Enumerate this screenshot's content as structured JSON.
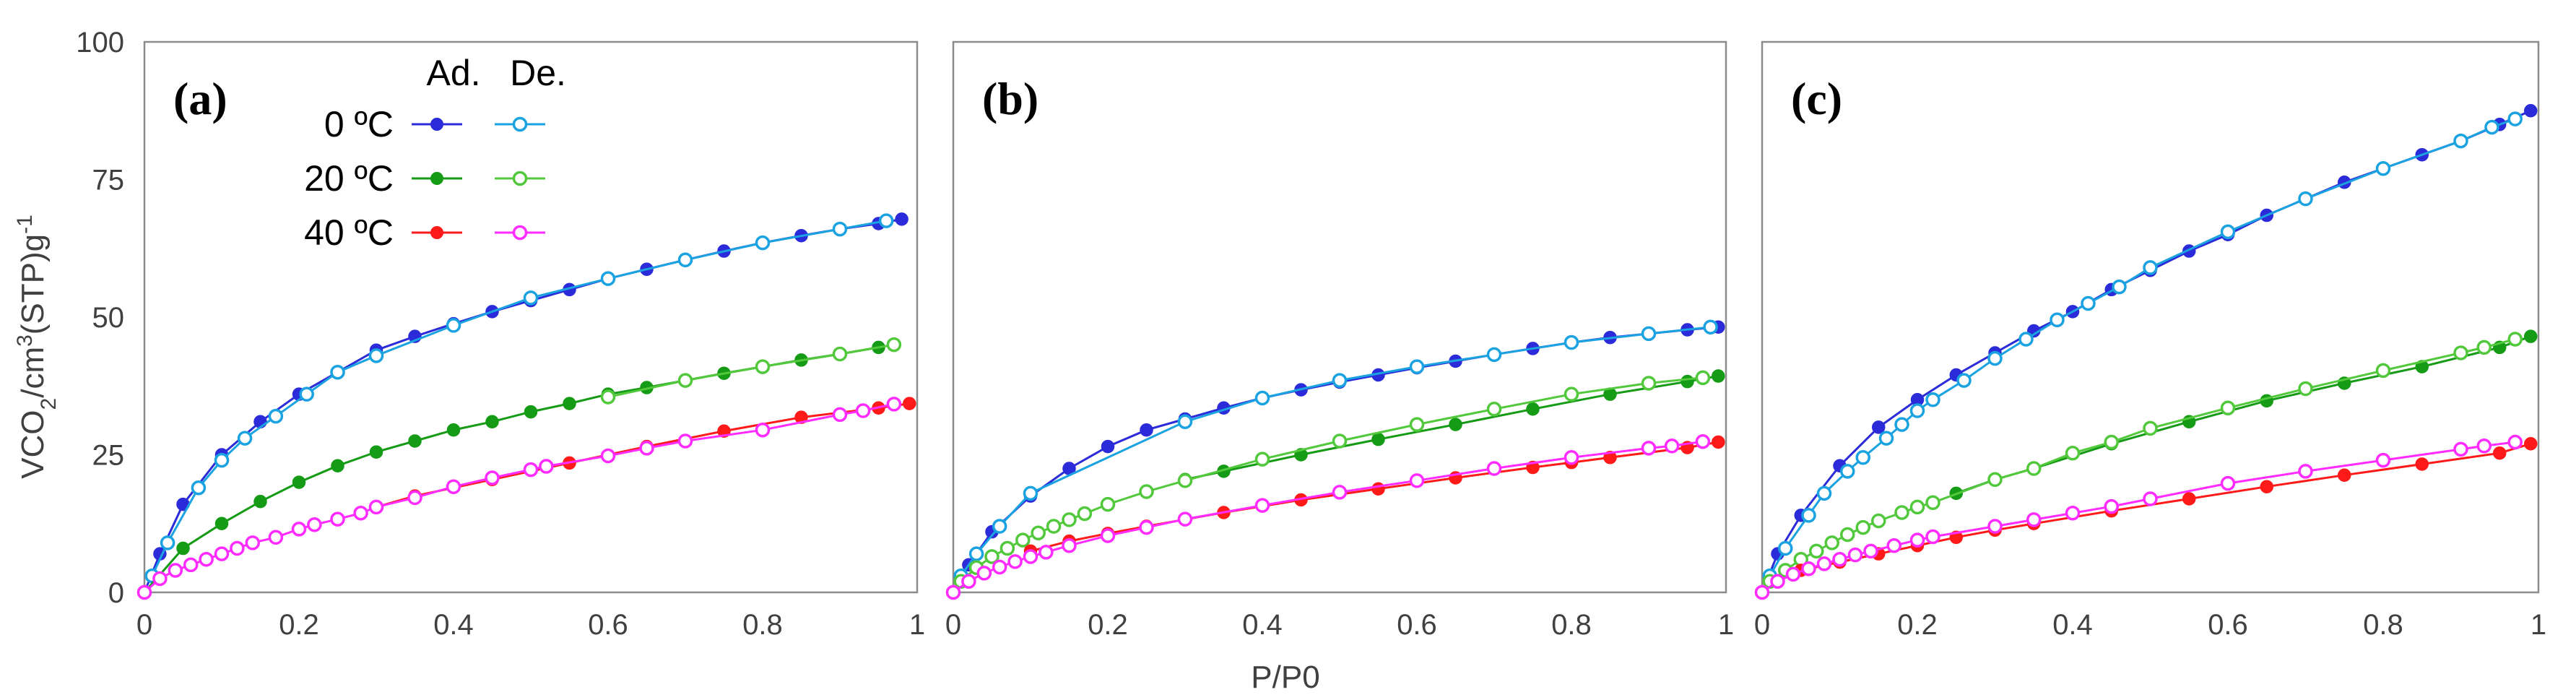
{
  "figure": {
    "x_axis_label": "P/P0",
    "y_axis_label": "VCO2/cm3(STP)g-1",
    "y_axis_label_parts": {
      "v": "VCO",
      "sub": "2",
      "mid": "/cm",
      "sup1": "3",
      "stp": "(STP)g",
      "sup2": "-1"
    }
  },
  "legend": {
    "ad_header": "Ad.",
    "de_header": "De.",
    "entries": [
      {
        "label": "0 ºC",
        "ad_color": "#2b2bd9",
        "de_color": "#1aa3e0"
      },
      {
        "label": "20 ºC",
        "ad_color": "#159b15",
        "de_color": "#52c83c"
      },
      {
        "label": "40 ºC",
        "ad_color": "#ff1a1a",
        "de_color": "#ff2bff"
      }
    ]
  },
  "chart_data": [
    {
      "type": "line",
      "panel_label": "(a)",
      "xlim": [
        0,
        1
      ],
      "ylim": [
        0,
        100
      ],
      "x_ticks": [
        "0",
        "0.2",
        "0.4",
        "0.6",
        "0.8",
        "1"
      ],
      "y_ticks": [
        "0",
        "25",
        "50",
        "75",
        "100"
      ],
      "grid": false,
      "series": [
        {
          "name": "0 ºC Ad.",
          "color": "#2b2bd9",
          "marker": "filled",
          "x": [
            0,
            0.02,
            0.05,
            0.1,
            0.15,
            0.2,
            0.25,
            0.3,
            0.35,
            0.4,
            0.45,
            0.5,
            0.55,
            0.6,
            0.65,
            0.7,
            0.75,
            0.8,
            0.85,
            0.9,
            0.95,
            0.98
          ],
          "y": [
            0,
            7,
            16,
            25,
            31,
            36,
            40,
            44,
            46.5,
            48.8,
            51,
            53,
            55,
            57,
            58.7,
            60.4,
            62,
            63.5,
            64.8,
            66,
            67,
            67.8
          ]
        },
        {
          "name": "0 ºC De.",
          "color": "#1aa3e0",
          "marker": "open",
          "x": [
            0.01,
            0.03,
            0.07,
            0.1,
            0.13,
            0.17,
            0.21,
            0.25,
            0.3,
            0.4,
            0.5,
            0.6,
            0.7,
            0.8,
            0.9,
            0.96
          ],
          "y": [
            3,
            9,
            19,
            24,
            28,
            32,
            36,
            40,
            43,
            48.5,
            53.5,
            57,
            60.4,
            63.5,
            66,
            67.5
          ]
        },
        {
          "name": "20 ºC Ad.",
          "color": "#159b15",
          "marker": "filled",
          "x": [
            0,
            0.05,
            0.1,
            0.15,
            0.2,
            0.25,
            0.3,
            0.35,
            0.4,
            0.45,
            0.5,
            0.55,
            0.6,
            0.65,
            0.7,
            0.75,
            0.8,
            0.85,
            0.9,
            0.95
          ],
          "y": [
            0,
            8,
            12.5,
            16.5,
            20,
            23,
            25.5,
            27.5,
            29.5,
            31,
            32.8,
            34.3,
            36,
            37.2,
            38.5,
            39.8,
            41,
            42.2,
            43.3,
            44.5
          ]
        },
        {
          "name": "20 ºC De.",
          "color": "#52c83c",
          "marker": "open",
          "x": [
            0.6,
            0.7,
            0.8,
            0.9,
            0.97
          ],
          "y": [
            35.5,
            38.5,
            41,
            43.3,
            45
          ]
        },
        {
          "name": "40 ºC Ad.",
          "color": "#ff1a1a",
          "marker": "filled",
          "x": [
            0.3,
            0.35,
            0.45,
            0.55,
            0.65,
            0.75,
            0.85,
            0.95,
            0.99
          ],
          "y": [
            15.5,
            17.5,
            20.5,
            23.5,
            26.5,
            29.3,
            31.8,
            33.5,
            34.3
          ]
        },
        {
          "name": "40 ºC De.",
          "color": "#ff2bff",
          "marker": "open",
          "x": [
            0,
            0.02,
            0.04,
            0.06,
            0.08,
            0.1,
            0.12,
            0.14,
            0.17,
            0.2,
            0.22,
            0.25,
            0.28,
            0.3,
            0.35,
            0.4,
            0.45,
            0.5,
            0.52,
            0.6,
            0.65,
            0.7,
            0.8,
            0.9,
            0.93,
            0.97
          ],
          "y": [
            0,
            2.5,
            4,
            5,
            6,
            7,
            8,
            9,
            10,
            11.5,
            12.3,
            13.3,
            14.4,
            15.5,
            17.2,
            19.2,
            20.8,
            22.3,
            22.9,
            24.8,
            26.2,
            27.5,
            29.5,
            32.3,
            33,
            34.2
          ]
        }
      ]
    },
    {
      "type": "line",
      "panel_label": "(b)",
      "xlim": [
        0,
        1
      ],
      "ylim": [
        0,
        100
      ],
      "x_ticks": [
        "0",
        "0.2",
        "0.4",
        "0.6",
        "0.8",
        "1"
      ],
      "y_ticks": [
        "0",
        "25",
        "50",
        "75",
        "100"
      ],
      "grid": false,
      "series": [
        {
          "name": "0 ºC Ad.",
          "color": "#2b2bd9",
          "marker": "filled",
          "x": [
            0,
            0.02,
            0.05,
            0.1,
            0.15,
            0.2,
            0.25,
            0.3,
            0.35,
            0.4,
            0.45,
            0.5,
            0.55,
            0.6,
            0.65,
            0.7,
            0.75,
            0.8,
            0.85,
            0.9,
            0.95,
            0.99
          ],
          "y": [
            0,
            5,
            11,
            17.5,
            22.5,
            26.5,
            29.5,
            31.5,
            33.5,
            35.3,
            36.8,
            38.2,
            39.5,
            40.8,
            42,
            43.2,
            44.3,
            45.4,
            46.3,
            47,
            47.7,
            48.2
          ]
        },
        {
          "name": "0 ºC De.",
          "color": "#1aa3e0",
          "marker": "open",
          "x": [
            0.01,
            0.03,
            0.06,
            0.1,
            0.3,
            0.4,
            0.5,
            0.6,
            0.7,
            0.8,
            0.9,
            0.98
          ],
          "y": [
            3,
            7,
            12,
            18,
            31,
            35.3,
            38.5,
            41,
            43.2,
            45.4,
            47,
            48.2
          ]
        },
        {
          "name": "20 ºC Ad.",
          "color": "#159b15",
          "marker": "filled",
          "x": [
            0.3,
            0.35,
            0.45,
            0.55,
            0.65,
            0.75,
            0.85,
            0.95,
            0.99
          ],
          "y": [
            20.5,
            22,
            25,
            27.8,
            30.5,
            33.3,
            36,
            38.3,
            39.3
          ]
        },
        {
          "name": "20 ºC De.",
          "color": "#52c83c",
          "marker": "open",
          "x": [
            0.01,
            0.03,
            0.05,
            0.07,
            0.09,
            0.11,
            0.13,
            0.15,
            0.17,
            0.2,
            0.25,
            0.3,
            0.4,
            0.5,
            0.6,
            0.7,
            0.8,
            0.9,
            0.97
          ],
          "y": [
            2,
            4.5,
            6.5,
            8,
            9.5,
            10.8,
            12,
            13.2,
            14.3,
            16,
            18.3,
            20.3,
            24.2,
            27.5,
            30.5,
            33.3,
            36,
            38,
            39
          ]
        },
        {
          "name": "40 ºC Ad.",
          "color": "#ff1a1a",
          "marker": "filled",
          "x": [
            0.1,
            0.15,
            0.2,
            0.25,
            0.35,
            0.45,
            0.55,
            0.65,
            0.75,
            0.8,
            0.85,
            0.95,
            0.99
          ],
          "y": [
            7.5,
            9.3,
            10.7,
            12,
            14.5,
            16.8,
            18.8,
            20.8,
            22.7,
            23.6,
            24.5,
            26.3,
            27.3
          ]
        },
        {
          "name": "40 ºC De.",
          "color": "#ff2bff",
          "marker": "open",
          "x": [
            0,
            0.02,
            0.04,
            0.06,
            0.08,
            0.1,
            0.12,
            0.15,
            0.2,
            0.25,
            0.3,
            0.4,
            0.5,
            0.6,
            0.7,
            0.8,
            0.9,
            0.93,
            0.97
          ],
          "y": [
            0,
            2,
            3.5,
            4.6,
            5.6,
            6.5,
            7.3,
            8.5,
            10.3,
            11.8,
            13.3,
            15.8,
            18.2,
            20.3,
            22.5,
            24.5,
            26.2,
            26.6,
            27.4
          ]
        }
      ]
    },
    {
      "type": "line",
      "panel_label": "(c)",
      "xlim": [
        0,
        1
      ],
      "ylim": [
        0,
        100
      ],
      "x_ticks": [
        "0",
        "0.2",
        "0.4",
        "0.6",
        "0.8",
        "1"
      ],
      "y_ticks": [
        "0",
        "25",
        "50",
        "75",
        "100"
      ],
      "grid": false,
      "series": [
        {
          "name": "0 ºC Ad.",
          "color": "#2b2bd9",
          "marker": "filled",
          "x": [
            0,
            0.02,
            0.05,
            0.1,
            0.15,
            0.2,
            0.25,
            0.3,
            0.35,
            0.4,
            0.45,
            0.5,
            0.55,
            0.6,
            0.65,
            0.7,
            0.75,
            0.8,
            0.85,
            0.9,
            0.95,
            0.99
          ],
          "y": [
            0,
            7,
            14,
            23,
            30,
            35,
            39.5,
            43.5,
            47.5,
            51,
            55,
            58.5,
            62,
            65,
            68.5,
            71.5,
            74.5,
            77,
            79.5,
            82,
            85,
            87.5
          ]
        },
        {
          "name": "0 ºC De.",
          "color": "#1aa3e0",
          "marker": "open",
          "x": [
            0.01,
            0.03,
            0.06,
            0.08,
            0.11,
            0.13,
            0.16,
            0.18,
            0.2,
            0.22,
            0.26,
            0.3,
            0.34,
            0.38,
            0.42,
            0.46,
            0.5,
            0.6,
            0.7,
            0.8,
            0.9,
            0.94,
            0.97
          ],
          "y": [
            3,
            8,
            14,
            18,
            22,
            24.5,
            28,
            30.5,
            33,
            35,
            38.5,
            42.5,
            46,
            49.5,
            52.5,
            55.5,
            59,
            65.5,
            71.5,
            77,
            82,
            84.5,
            86
          ]
        },
        {
          "name": "20 ºC Ad.",
          "color": "#159b15",
          "marker": "filled",
          "x": [
            0.25,
            0.3,
            0.35,
            0.45,
            0.55,
            0.65,
            0.75,
            0.85,
            0.95,
            0.99
          ],
          "y": [
            18,
            20.5,
            22.5,
            27,
            31,
            34.8,
            38,
            41,
            44.5,
            46.5
          ]
        },
        {
          "name": "20 ºC De.",
          "color": "#52c83c",
          "marker": "open",
          "x": [
            0.01,
            0.03,
            0.05,
            0.07,
            0.09,
            0.11,
            0.13,
            0.15,
            0.18,
            0.2,
            0.22,
            0.3,
            0.35,
            0.4,
            0.45,
            0.5,
            0.6,
            0.7,
            0.8,
            0.9,
            0.93,
            0.97
          ],
          "y": [
            2,
            4,
            6,
            7.5,
            9,
            10.5,
            11.8,
            13,
            14.5,
            15.5,
            16.3,
            20.5,
            22.5,
            25.3,
            27.3,
            29.8,
            33.5,
            37,
            40.3,
            43.5,
            44.5,
            46
          ]
        },
        {
          "name": "40 ºC Ad.",
          "color": "#ff1a1a",
          "marker": "filled",
          "x": [
            0.05,
            0.1,
            0.15,
            0.2,
            0.25,
            0.3,
            0.35,
            0.45,
            0.55,
            0.65,
            0.75,
            0.85,
            0.95,
            0.99
          ],
          "y": [
            4,
            5.5,
            7,
            8.5,
            10,
            11.3,
            12.5,
            14.8,
            17,
            19.2,
            21.3,
            23.3,
            25.3,
            27
          ]
        },
        {
          "name": "40 ºC De.",
          "color": "#ff2bff",
          "marker": "open",
          "x": [
            0,
            0.02,
            0.04,
            0.06,
            0.08,
            0.1,
            0.12,
            0.14,
            0.17,
            0.2,
            0.22,
            0.3,
            0.35,
            0.4,
            0.45,
            0.5,
            0.6,
            0.7,
            0.8,
            0.9,
            0.93,
            0.97
          ],
          "y": [
            0,
            2,
            3.3,
            4.3,
            5.2,
            6,
            6.8,
            7.5,
            8.5,
            9.5,
            10.1,
            12,
            13.2,
            14.4,
            15.6,
            17,
            19.8,
            22,
            24,
            26,
            26.6,
            27.3
          ]
        }
      ]
    }
  ]
}
